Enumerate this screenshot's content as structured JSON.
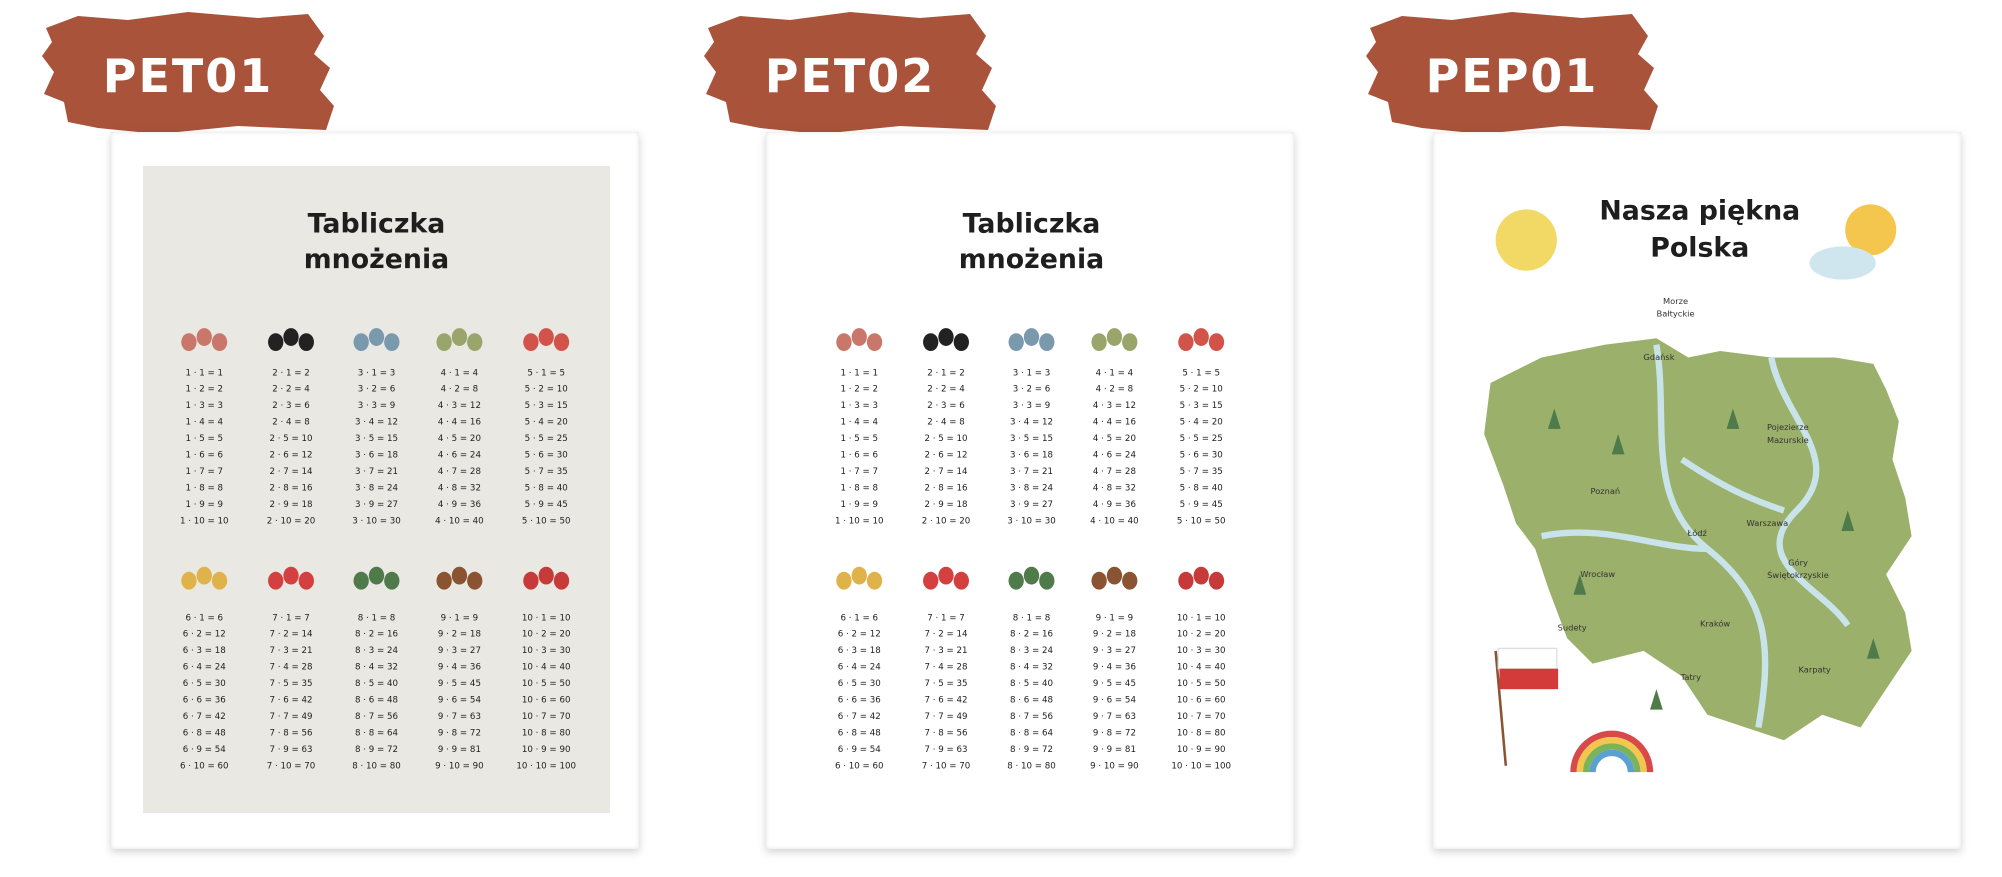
{
  "labels": [
    "PET01",
    "PET02",
    "PEP01"
  ],
  "posters": [
    {
      "title": [
        "Tabliczka",
        "mnożenia"
      ],
      "tables": [
        [
          "1 · 1 = 1",
          "1 · 2 = 2",
          "1 · 3 = 3",
          "1 · 4 = 4",
          "1 · 5 = 5",
          "1 · 6 = 6",
          "1 · 7 = 7",
          "1 · 8 = 8",
          "1 · 9 = 9",
          "1 · 10 = 10"
        ],
        [
          "2 · 1 = 2",
          "2 · 2 = 4",
          "2 · 3 = 6",
          "2 · 4 = 8",
          "2 · 5 = 10",
          "2 · 6 = 12",
          "2 · 7 = 14",
          "2 · 8 = 16",
          "2 · 9 = 18",
          "2 · 10 = 20"
        ],
        [
          "3 · 1 = 3",
          "3 · 2 = 6",
          "3 · 3 = 9",
          "3 · 4 = 12",
          "3 · 5 = 15",
          "3 · 6 = 18",
          "3 · 7 = 21",
          "3 · 8 = 24",
          "3 · 9 = 27",
          "3 · 10 = 30"
        ],
        [
          "4 · 1 = 4",
          "4 · 2 = 8",
          "4 · 3 = 12",
          "4 · 4 = 16",
          "4 · 5 = 20",
          "4 · 6 = 24",
          "4 · 7 = 28",
          "4 · 8 = 32",
          "4 · 9 = 36",
          "4 · 10 = 40"
        ],
        [
          "5 · 1 = 5",
          "5 · 2 = 10",
          "5 · 3 = 15",
          "5 · 4 = 20",
          "5 · 5 = 25",
          "5 · 6 = 30",
          "5 · 7 = 35",
          "5 · 8 = 40",
          "5 · 9 = 45",
          "5 · 10 = 50"
        ],
        [
          "6 · 1 = 6",
          "6 · 2 = 12",
          "6 · 3 = 18",
          "6 · 4 = 24",
          "6 · 5 = 30",
          "6 · 6 = 36",
          "6 · 7 = 42",
          "6 · 8 = 48",
          "6 · 9 = 54",
          "6 · 10 = 60"
        ],
        [
          "7 · 1 = 7",
          "7 · 2 = 14",
          "7 · 3 = 21",
          "7 · 4 = 28",
          "7 · 5 = 35",
          "7 · 6 = 42",
          "7 · 7 = 49",
          "7 · 8 = 56",
          "7 · 9 = 63",
          "7 · 10 = 70"
        ],
        [
          "8 · 1 = 8",
          "8 · 2 = 16",
          "8 · 3 = 24",
          "8 · 4 = 32",
          "8 · 5 = 40",
          "8 · 6 = 48",
          "8 · 7 = 56",
          "8 · 8 = 64",
          "8 · 9 = 72",
          "8 · 10 = 80"
        ],
        [
          "9 · 1 = 9",
          "9 · 2 = 18",
          "9 · 3 = 27",
          "9 · 4 = 36",
          "9 · 5 = 45",
          "9 · 6 = 54",
          "9 · 7 = 63",
          "9 · 8 = 72",
          "9 · 9 = 81",
          "9 · 10 = 90"
        ],
        [
          "10 · 1 = 10",
          "10 · 2 = 20",
          "10 · 3 = 30",
          "10 · 4 = 40",
          "10 · 5 = 50",
          "10 · 6 = 60",
          "10 · 7 = 70",
          "10 · 8 = 80",
          "10 · 9 = 90",
          "10 · 10 = 100"
        ]
      ]
    },
    {
      "title": [
        "Tabliczka",
        "mnożenia"
      ],
      "tables": [
        [
          "1 · 1 = 1",
          "1 · 2 = 2",
          "1 · 3 = 3",
          "1 · 4 = 4",
          "1 · 5 = 5",
          "1 · 6 = 6",
          "1 · 7 = 7",
          "1 · 8 = 8",
          "1 · 9 = 9",
          "1 · 10 = 10"
        ],
        [
          "2 · 1 = 2",
          "2 · 2 = 4",
          "2 · 3 = 6",
          "2 · 4 = 8",
          "2 · 5 = 10",
          "2 · 6 = 12",
          "2 · 7 = 14",
          "2 · 8 = 16",
          "2 · 9 = 18",
          "2 · 10 = 20"
        ],
        [
          "3 · 1 = 3",
          "3 · 2 = 6",
          "3 · 3 = 9",
          "3 · 4 = 12",
          "3 · 5 = 15",
          "3 · 6 = 18",
          "3 · 7 = 21",
          "3 · 8 = 24",
          "3 · 9 = 27",
          "3 · 10 = 30"
        ],
        [
          "4 · 1 = 4",
          "4 · 2 = 8",
          "4 · 3 = 12",
          "4 · 4 = 16",
          "4 · 5 = 20",
          "4 · 6 = 24",
          "4 · 7 = 28",
          "4 · 8 = 32",
          "4 · 9 = 36",
          "4 · 10 = 40"
        ],
        [
          "5 · 1 = 5",
          "5 · 2 = 10",
          "5 · 3 = 15",
          "5 · 4 = 20",
          "5 · 5 = 25",
          "5 · 6 = 30",
          "5 · 7 = 35",
          "5 · 8 = 40",
          "5 · 9 = 45",
          "5 · 10 = 50"
        ],
        [
          "6 · 1 = 6",
          "6 · 2 = 12",
          "6 · 3 = 18",
          "6 · 4 = 24",
          "6 · 5 = 30",
          "6 · 6 = 36",
          "6 · 7 = 42",
          "6 · 8 = 48",
          "6 · 9 = 54",
          "6 · 10 = 60"
        ],
        [
          "7 · 1 = 7",
          "7 · 2 = 14",
          "7 · 3 = 21",
          "7 · 4 = 28",
          "7 · 5 = 35",
          "7 · 6 = 42",
          "7 · 7 = 49",
          "7 · 8 = 56",
          "7 · 9 = 63",
          "7 · 10 = 70"
        ],
        [
          "8 · 1 = 8",
          "8 · 2 = 16",
          "8 · 3 = 24",
          "8 · 4 = 32",
          "8 · 5 = 40",
          "8 · 6 = 48",
          "8 · 7 = 56",
          "8 · 8 = 64",
          "8 · 9 = 72",
          "8 · 10 = 80"
        ],
        [
          "9 · 1 = 9",
          "9 · 2 = 18",
          "9 · 3 = 27",
          "9 · 4 = 36",
          "9 · 5 = 45",
          "9 · 6 = 54",
          "9 · 7 = 63",
          "9 · 8 = 72",
          "9 · 9 = 81",
          "9 · 10 = 90"
        ],
        [
          "10 · 1 = 10",
          "10 · 2 = 20",
          "10 · 3 = 30",
          "10 · 4 = 40",
          "10 · 5 = 50",
          "10 · 6 = 60",
          "10 · 7 = 70",
          "10 · 8 = 80",
          "10 · 9 = 90",
          "10 · 10 = 100"
        ]
      ]
    },
    {
      "title": [
        "Nasza piękna",
        "Polska"
      ],
      "map_labels": [
        "Morze",
        "Bałtyckie",
        "Gdańsk",
        "Pojezierze",
        "Mazurskie",
        "Poznań",
        "Warszawa",
        "Łódź",
        "Wrocław",
        "Góry",
        "Świętokrzyskie",
        "Sudety",
        "Kraków",
        "Tatry",
        "Karpaty"
      ]
    }
  ]
}
